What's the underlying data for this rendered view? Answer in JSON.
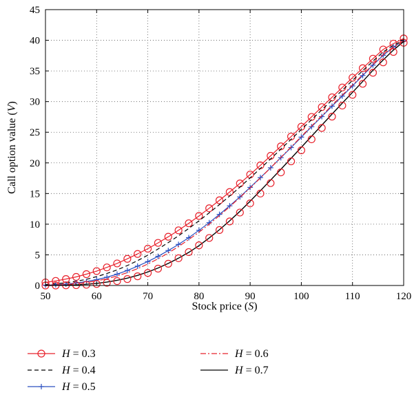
{
  "chart_data": {
    "type": "line",
    "xlabel": "Stock price (S)",
    "ylabel": "Call option value (V)",
    "xlim": [
      50,
      120
    ],
    "ylim": [
      0,
      45
    ],
    "xticks": [
      50,
      60,
      70,
      80,
      90,
      100,
      110,
      120
    ],
    "yticks": [
      0,
      5,
      10,
      15,
      20,
      25,
      30,
      35,
      40,
      45
    ],
    "grid": true,
    "legend_position": "bottom",
    "x": [
      50,
      52,
      54,
      56,
      58,
      60,
      62,
      64,
      66,
      68,
      70,
      72,
      74,
      76,
      78,
      80,
      82,
      84,
      86,
      88,
      90,
      92,
      94,
      96,
      98,
      100,
      102,
      104,
      106,
      108,
      110,
      112,
      114,
      116,
      118,
      120
    ],
    "series": [
      {
        "name": "H = 0.3",
        "color": "#e8202a",
        "style": "line-circle",
        "values": [
          0.5,
          0.75,
          1.05,
          1.4,
          1.85,
          2.35,
          2.95,
          3.6,
          4.35,
          5.15,
          6.0,
          6.95,
          7.95,
          9.0,
          10.15,
          11.35,
          12.6,
          13.9,
          15.25,
          16.65,
          18.1,
          19.6,
          21.15,
          22.7,
          24.3,
          25.9,
          27.5,
          29.1,
          30.7,
          32.3,
          33.9,
          35.45,
          37.0,
          38.5,
          39.45,
          40.3
        ]
      },
      {
        "name": "H = 0.4",
        "color": "#000000",
        "style": "dashed",
        "values": [
          0.15,
          0.28,
          0.45,
          0.7,
          1.0,
          1.45,
          1.95,
          2.55,
          3.25,
          4.05,
          4.95,
          5.95,
          7.0,
          8.1,
          9.3,
          10.55,
          11.85,
          13.2,
          14.6,
          16.05,
          17.55,
          19.1,
          20.65,
          22.25,
          23.85,
          25.45,
          27.05,
          28.65,
          30.25,
          31.85,
          33.45,
          35.05,
          36.6,
          38.1,
          39.2,
          40.0
        ]
      },
      {
        "name": "H = 0.5",
        "color": "#2a4fc1",
        "style": "line-plus",
        "values": [
          0.05,
          0.12,
          0.22,
          0.4,
          0.65,
          0.95,
          1.35,
          1.85,
          2.45,
          3.15,
          3.9,
          4.75,
          5.7,
          6.7,
          7.8,
          9.0,
          10.25,
          11.6,
          13.0,
          14.45,
          16.0,
          17.6,
          19.2,
          20.85,
          22.5,
          24.2,
          25.9,
          27.55,
          29.25,
          30.9,
          32.55,
          34.25,
          35.95,
          37.55,
          38.9,
          39.9
        ]
      },
      {
        "name": "H = 0.6",
        "color": "#e8202a",
        "style": "dash-dot",
        "values": [
          0.03,
          0.08,
          0.15,
          0.28,
          0.48,
          0.75,
          1.1,
          1.55,
          2.1,
          2.75,
          3.5,
          4.35,
          5.3,
          6.35,
          7.5,
          8.7,
          10.0,
          11.4,
          12.85,
          14.35,
          15.9,
          17.55,
          19.2,
          20.9,
          22.6,
          24.3,
          26.0,
          27.7,
          29.4,
          31.05,
          32.7,
          34.4,
          36.05,
          37.65,
          38.95,
          39.9
        ]
      },
      {
        "name": "H = 0.7",
        "color": "#000000",
        "style": "solid",
        "values": [
          0.0,
          0.02,
          0.05,
          0.1,
          0.2,
          0.35,
          0.55,
          0.85,
          1.2,
          1.65,
          2.2,
          2.85,
          3.6,
          4.45,
          5.4,
          6.5,
          7.75,
          9.1,
          10.55,
          12.1,
          13.75,
          15.45,
          17.2,
          18.95,
          20.75,
          22.55,
          24.35,
          26.15,
          27.95,
          29.75,
          31.5,
          33.3,
          35.1,
          36.8,
          38.4,
          39.8
        ]
      },
      {
        "name": "",
        "color": "#e8202a",
        "style": "circle-only",
        "values": [
          0.0,
          0.0,
          0.02,
          0.05,
          0.12,
          0.25,
          0.45,
          0.72,
          1.05,
          1.5,
          2.05,
          2.75,
          3.55,
          4.45,
          5.45,
          6.55,
          7.75,
          9.05,
          10.45,
          11.9,
          13.4,
          15.0,
          16.7,
          18.45,
          20.25,
          22.05,
          23.85,
          25.7,
          27.55,
          29.35,
          31.1,
          32.9,
          34.7,
          36.4,
          38.1,
          39.6
        ]
      }
    ],
    "legend": {
      "col1": [
        {
          "series": 0,
          "label_prefix": "H",
          "label_rest": " = 0.3"
        },
        {
          "series": 1,
          "label_prefix": "H",
          "label_rest": " = 0.4"
        },
        {
          "series": 2,
          "label_prefix": "H",
          "label_rest": " = 0.5"
        }
      ],
      "col2": [
        {
          "series": 3,
          "label_prefix": "H",
          "label_rest": " = 0.6"
        },
        {
          "series": 4,
          "label_prefix": "H",
          "label_rest": " = 0.7"
        }
      ]
    },
    "xlabel_parts": {
      "main": "Stock price (",
      "var": "S",
      "end": ")"
    },
    "ylabel_parts": {
      "main": "Call option value (",
      "var": "V",
      "end": ")"
    }
  }
}
